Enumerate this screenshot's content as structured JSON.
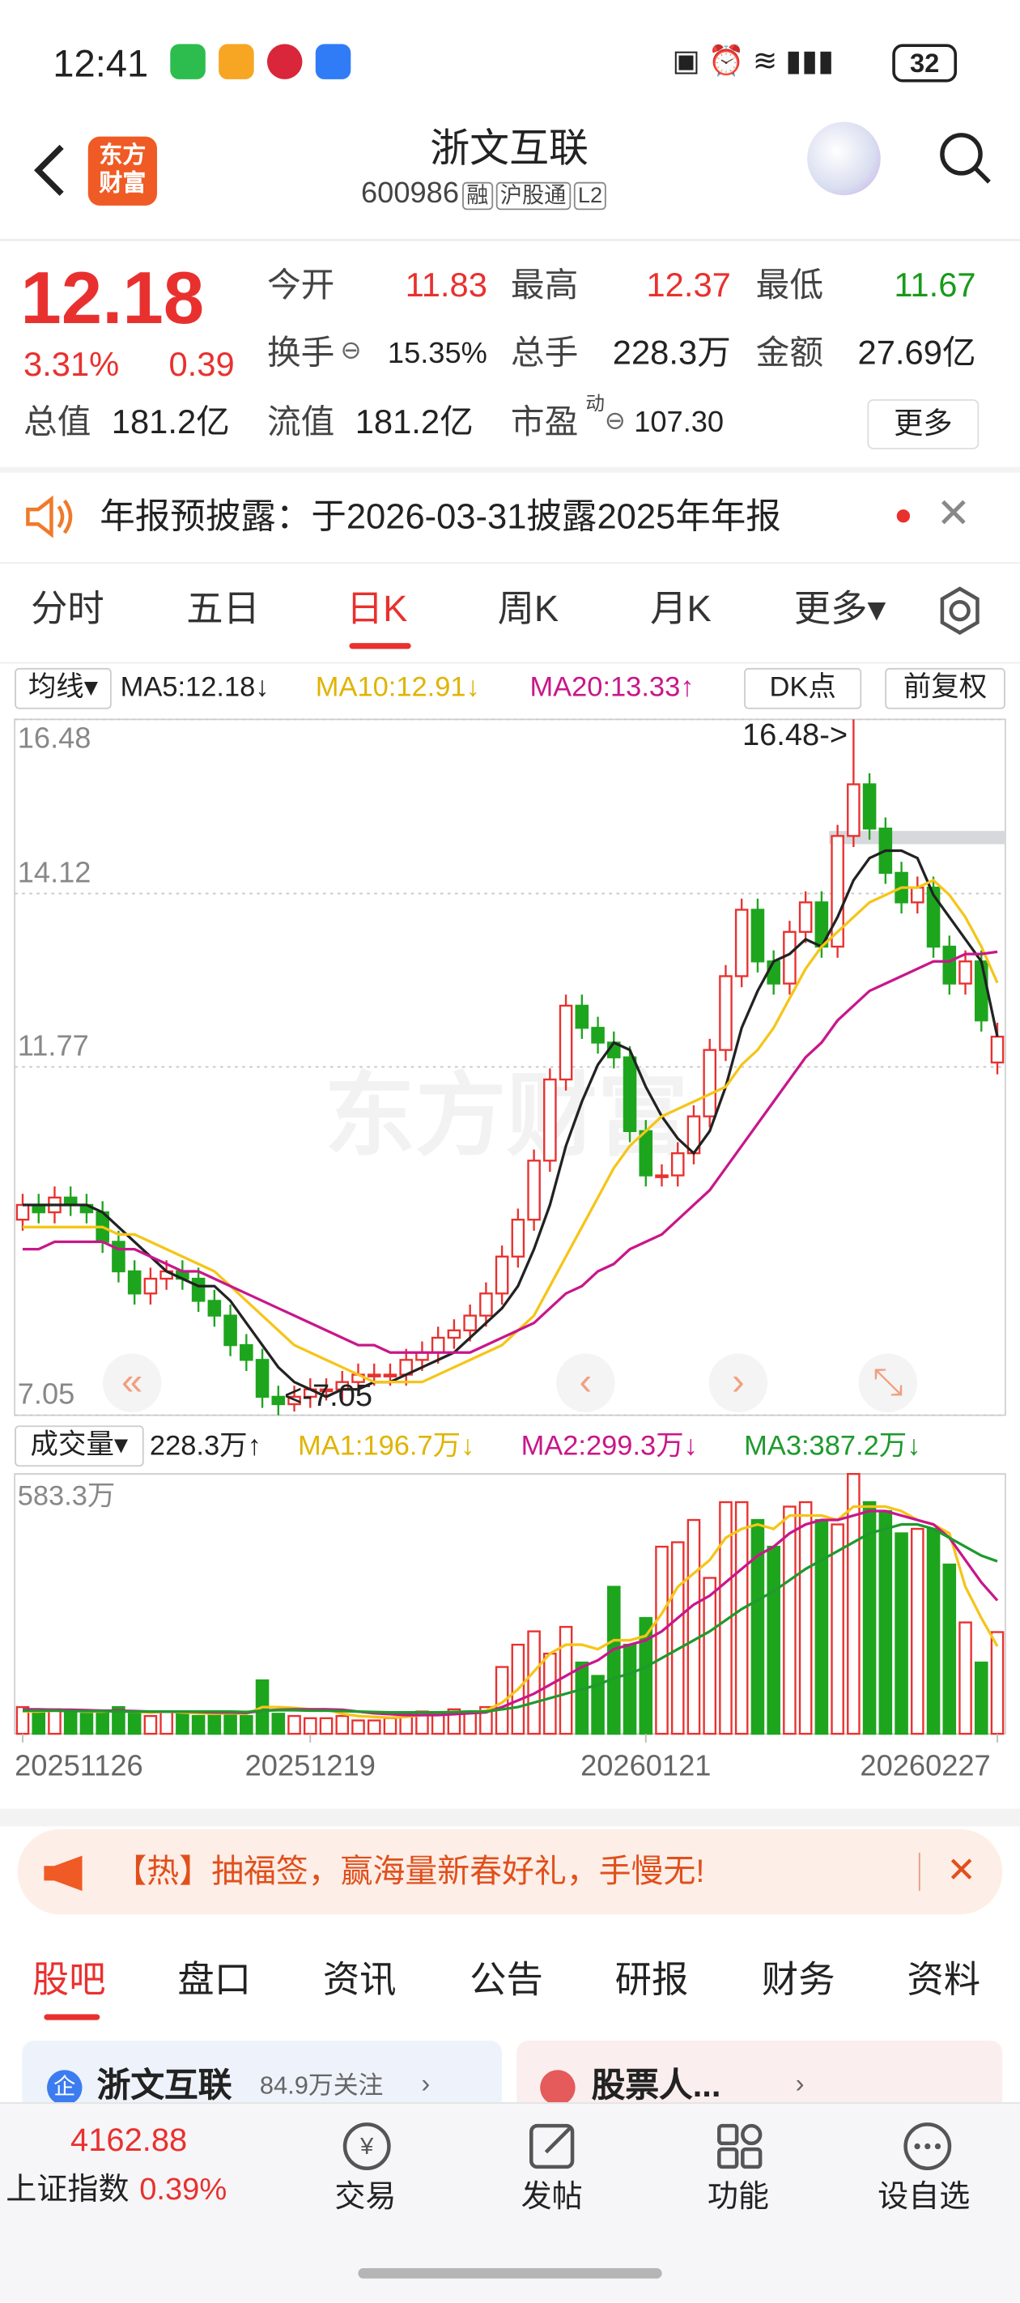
{
  "status_bar": {
    "time": "12:41",
    "battery": "32"
  },
  "header": {
    "logo": [
      "东方",
      "财富"
    ],
    "title": "浙文互联",
    "code": "600986",
    "tags": [
      "融",
      "沪股通",
      "L2"
    ]
  },
  "quote": {
    "price": 12.18,
    "change_pct": "3.31%",
    "change": 0.39,
    "fields": [
      {
        "label": "今开",
        "value": 11.83
      },
      {
        "label": "最高",
        "value": 12.37
      },
      {
        "label": "最低",
        "value": 11.67
      },
      {
        "label": "换手",
        "value": "15.35%"
      },
      {
        "label": "总手",
        "value": "228.3万"
      },
      {
        "label": "金额",
        "value": "27.69亿"
      },
      {
        "label": "总值",
        "value": "181.2亿"
      },
      {
        "label": "流值",
        "value": "181.2亿"
      },
      {
        "label": "市盈",
        "sup": "动",
        "value": "107.30"
      }
    ],
    "more": "更多"
  },
  "notice": "年报预披露：于2026-03-31披露2025年年报",
  "period_tabs": [
    "分时",
    "五日",
    "日K",
    "周K",
    "月K",
    "更多▾"
  ],
  "indicator_bar": {
    "ma_menu": "均线▾",
    "dk": "DK点",
    "adjust": "前复权"
  },
  "chart_data": [
    {
      "type": "candlestick",
      "watermark": "东方财富",
      "up_color": "#e8312f",
      "down_color": "#1ea51e",
      "annotations": [
        "16.48->",
        "<-7.05"
      ],
      "categories": [
        "20251126",
        null,
        null,
        null,
        null,
        null,
        null,
        null,
        null,
        null,
        null,
        null,
        null,
        null,
        null,
        null,
        null,
        null,
        "20251219",
        null,
        null,
        null,
        null,
        null,
        null,
        null,
        null,
        null,
        null,
        null,
        null,
        null,
        null,
        null,
        null,
        null,
        null,
        null,
        null,
        "20260121",
        null,
        null,
        null,
        null,
        null,
        null,
        null,
        null,
        null,
        null,
        null,
        null,
        null,
        null,
        null,
        null,
        null,
        null,
        null,
        null,
        null,
        "20260227"
      ],
      "open": [
        9.7,
        9.9,
        9.8,
        10.0,
        9.9,
        9.8,
        9.4,
        9.0,
        8.7,
        8.9,
        9.0,
        8.9,
        8.6,
        8.4,
        8.0,
        7.8,
        7.3,
        7.2,
        7.3,
        7.4,
        7.4,
        7.5,
        7.6,
        7.6,
        7.6,
        7.8,
        7.9,
        8.1,
        8.2,
        8.4,
        8.7,
        9.2,
        9.7,
        10.5,
        11.6,
        12.6,
        12.3,
        12.1,
        11.9,
        10.9,
        10.3,
        10.3,
        10.6,
        11.1,
        12.0,
        13.0,
        13.9,
        13.2,
        12.9,
        13.6,
        14.0,
        13.4,
        14.9,
        15.6,
        15.0,
        14.4,
        14.0,
        14.2,
        13.4,
        12.9,
        13.2,
        11.83
      ],
      "high": [
        10.05,
        10.05,
        10.15,
        10.15,
        10.05,
        9.95,
        9.55,
        9.15,
        9.05,
        9.15,
        9.15,
        9.05,
        8.75,
        8.55,
        8.15,
        7.95,
        7.45,
        7.45,
        7.55,
        7.55,
        7.65,
        7.75,
        7.75,
        7.75,
        7.95,
        8.05,
        8.25,
        8.35,
        8.55,
        8.85,
        9.35,
        9.85,
        10.65,
        11.75,
        12.75,
        12.75,
        12.45,
        12.25,
        12.05,
        11.05,
        10.45,
        10.75,
        11.25,
        12.15,
        13.15,
        14.05,
        14.05,
        13.35,
        13.75,
        14.15,
        14.15,
        15.05,
        16.48,
        15.75,
        15.15,
        14.55,
        14.35,
        14.35,
        13.55,
        13.35,
        13.35,
        12.37
      ],
      "low": [
        9.55,
        9.65,
        9.65,
        9.75,
        9.65,
        9.25,
        8.85,
        8.55,
        8.55,
        8.75,
        8.75,
        8.45,
        8.25,
        7.85,
        7.65,
        7.15,
        7.05,
        7.1,
        7.15,
        7.25,
        7.25,
        7.35,
        7.45,
        7.45,
        7.45,
        7.65,
        7.75,
        7.95,
        8.05,
        8.25,
        8.55,
        9.05,
        9.55,
        10.35,
        11.45,
        12.15,
        11.95,
        11.75,
        10.75,
        10.15,
        10.15,
        10.15,
        10.45,
        10.95,
        11.85,
        12.85,
        13.05,
        12.75,
        12.75,
        13.45,
        13.25,
        13.25,
        14.75,
        14.85,
        14.25,
        13.85,
        13.85,
        13.25,
        12.75,
        12.75,
        12.25,
        11.67
      ],
      "close": [
        9.9,
        9.8,
        10.0,
        9.9,
        9.8,
        9.4,
        9.0,
        8.7,
        8.9,
        9.0,
        8.9,
        8.6,
        8.4,
        8.0,
        7.8,
        7.3,
        7.2,
        7.3,
        7.4,
        7.4,
        7.5,
        7.6,
        7.6,
        7.6,
        7.8,
        7.9,
        8.1,
        8.2,
        8.4,
        8.7,
        9.2,
        9.7,
        10.5,
        11.6,
        12.6,
        12.3,
        12.1,
        11.9,
        10.9,
        10.3,
        10.3,
        10.6,
        11.1,
        12.0,
        13.0,
        13.9,
        13.2,
        12.9,
        13.6,
        14.0,
        13.4,
        14.9,
        15.6,
        15.0,
        14.4,
        14.0,
        14.2,
        13.4,
        12.9,
        13.2,
        12.4,
        12.18
      ],
      "series": [
        {
          "name": "MA5:12.18↓",
          "color": "#222222",
          "values": [
            9.9,
            9.9,
            9.9,
            9.9,
            9.9,
            9.8,
            9.6,
            9.4,
            9.2,
            9.0,
            8.9,
            8.8,
            8.8,
            8.6,
            8.3,
            8.0,
            7.7,
            7.5,
            7.4,
            7.3,
            7.4,
            7.4,
            7.5,
            7.5,
            7.6,
            7.7,
            7.8,
            7.9,
            8.1,
            8.3,
            8.5,
            8.8,
            9.3,
            9.9,
            10.7,
            11.3,
            11.8,
            12.1,
            12.0,
            11.5,
            11.1,
            10.8,
            10.6,
            10.9,
            11.5,
            12.3,
            12.8,
            13.2,
            13.3,
            13.5,
            13.4,
            13.8,
            14.3,
            14.6,
            14.7,
            14.7,
            14.6,
            14.1,
            13.8,
            13.5,
            13.2,
            12.18
          ]
        },
        {
          "name": "MA10:12.91↓",
          "color": "#f5c518",
          "values": [
            9.6,
            9.6,
            9.6,
            9.6,
            9.6,
            9.6,
            9.5,
            9.5,
            9.4,
            9.3,
            9.2,
            9.1,
            9.0,
            8.8,
            8.6,
            8.4,
            8.2,
            8.0,
            7.9,
            7.8,
            7.7,
            7.6,
            7.5,
            7.5,
            7.5,
            7.5,
            7.6,
            7.7,
            7.8,
            7.9,
            8.0,
            8.2,
            8.4,
            8.8,
            9.2,
            9.6,
            10.0,
            10.4,
            10.7,
            10.9,
            11.1,
            11.2,
            11.3,
            11.4,
            11.5,
            11.8,
            12.0,
            12.3,
            12.7,
            13.1,
            13.4,
            13.6,
            13.8,
            14.0,
            14.1,
            14.2,
            14.2,
            14.3,
            14.1,
            13.8,
            13.4,
            12.91
          ]
        },
        {
          "name": "MA20:13.33↑",
          "color": "#c8178a",
          "values": [
            9.3,
            9.3,
            9.4,
            9.4,
            9.4,
            9.4,
            9.3,
            9.3,
            9.2,
            9.1,
            9.0,
            9.0,
            8.9,
            8.8,
            8.7,
            8.6,
            8.5,
            8.4,
            8.3,
            8.2,
            8.1,
            8.0,
            8.0,
            7.9,
            7.9,
            7.9,
            7.9,
            7.9,
            7.9,
            8.0,
            8.1,
            8.2,
            8.3,
            8.5,
            8.7,
            8.8,
            9.0,
            9.1,
            9.3,
            9.4,
            9.5,
            9.7,
            9.9,
            10.1,
            10.4,
            10.7,
            11.0,
            11.3,
            11.6,
            11.9,
            12.1,
            12.4,
            12.6,
            12.8,
            12.9,
            13.0,
            13.1,
            13.2,
            13.2,
            13.3,
            13.3,
            13.33
          ]
        }
      ],
      "ylim": [
        7.05,
        16.48
      ],
      "yticks": [
        16.48,
        14.12,
        11.77,
        7.05
      ],
      "grid": true
    },
    {
      "type": "bar",
      "title": "成交量▾",
      "latest_label": "228.3万↑",
      "values": [
        60,
        50,
        55,
        50,
        45,
        50,
        60,
        45,
        40,
        50,
        45,
        40,
        45,
        50,
        40,
        120,
        45,
        40,
        35,
        35,
        40,
        30,
        30,
        35,
        45,
        50,
        45,
        55,
        50,
        60,
        150,
        200,
        230,
        180,
        240,
        160,
        130,
        330,
        200,
        260,
        420,
        430,
        480,
        350,
        520,
        520,
        480,
        420,
        510,
        520,
        480,
        470,
        583.3,
        520,
        500,
        450,
        460,
        460,
        380,
        250,
        160,
        228.3
      ],
      "series": [
        {
          "name": "MA1:196.7万↓",
          "color": "#f5c518",
          "values": [
            50,
            50,
            52,
            52,
            50,
            50,
            52,
            50,
            48,
            50,
            48,
            46,
            45,
            46,
            45,
            60,
            60,
            58,
            55,
            55,
            45,
            40,
            38,
            36,
            38,
            42,
            44,
            46,
            48,
            52,
            70,
            100,
            140,
            180,
            200,
            200,
            190,
            210,
            210,
            220,
            270,
            330,
            360,
            390,
            440,
            460,
            470,
            460,
            490,
            490,
            490,
            480,
            510,
            510,
            510,
            500,
            480,
            470,
            450,
            330,
            260,
            196.7
          ]
        },
        {
          "name": "MA2:299.3万↓",
          "color": "#c8178a",
          "values": [
            55,
            55,
            54,
            54,
            53,
            52,
            52,
            51,
            50,
            50,
            50,
            49,
            48,
            48,
            47,
            52,
            54,
            55,
            55,
            55,
            54,
            50,
            46,
            44,
            42,
            42,
            42,
            44,
            46,
            48,
            60,
            75,
            90,
            110,
            130,
            150,
            165,
            190,
            200,
            210,
            230,
            260,
            290,
            310,
            340,
            370,
            400,
            420,
            450,
            470,
            480,
            480,
            490,
            500,
            500,
            490,
            480,
            470,
            440,
            390,
            340,
            299.3
          ]
        },
        {
          "name": "MA3:387.2万↓",
          "color": "#1e9a2e",
          "values": [
            52,
            52,
            52,
            51,
            51,
            51,
            50,
            50,
            50,
            50,
            50,
            50,
            50,
            50,
            49,
            52,
            53,
            53,
            52,
            52,
            51,
            50,
            49,
            48,
            48,
            48,
            48,
            49,
            50,
            50,
            55,
            60,
            70,
            80,
            90,
            100,
            110,
            125,
            135,
            150,
            170,
            190,
            210,
            230,
            255,
            280,
            300,
            320,
            345,
            370,
            390,
            410,
            430,
            450,
            460,
            470,
            470,
            460,
            440,
            420,
            400,
            387.2
          ]
        }
      ],
      "ylim": [
        0,
        583.3
      ],
      "yticks": [
        {
          "value": 583.3,
          "label": "583.3万"
        }
      ]
    }
  ],
  "banner": "【热】抽福签，赢海量新春好礼，手慢无!",
  "info_tabs": [
    "股吧",
    "盘口",
    "资讯",
    "公告",
    "研报",
    "财务",
    "资料"
  ],
  "cards": [
    {
      "icon": "企",
      "title": "浙文互联",
      "sub": "84.9万关注"
    },
    {
      "title": "股票人..."
    }
  ],
  "bottom_bar": {
    "index_value": 4162.88,
    "index_name": "上证指数",
    "index_change": "0.39%",
    "actions": [
      "交易",
      "发帖",
      "功能",
      "设自选"
    ]
  }
}
